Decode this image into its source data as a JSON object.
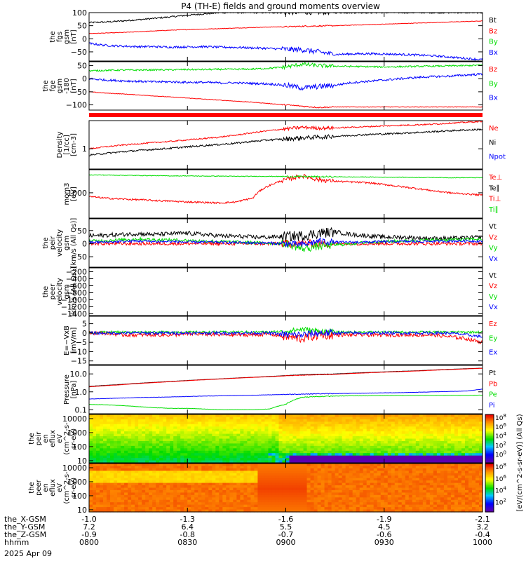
{
  "title": "P4 (TH-E) fields and ground moments overview",
  "time_axis": {
    "rows": [
      {
        "label": "the_X-GSM",
        "values": [
          "-1.0",
          "-1.3",
          "-1.6",
          "-1.9",
          "-2.1"
        ]
      },
      {
        "label": "the_Y-GSM",
        "values": [
          "7.2",
          "6.4",
          "5.5",
          "4.5",
          "3.2"
        ]
      },
      {
        "label": "the_Z-GSM",
        "values": [
          "-0.9",
          "-0.8",
          "-0.7",
          "-0.6",
          "-0.4"
        ]
      },
      {
        "label": "hhmm",
        "values": [
          "0800",
          "0830",
          "0900",
          "0930",
          "1000"
        ]
      }
    ],
    "date": "2025 Apr 09"
  },
  "colors": {
    "black": "#000000",
    "red": "#ff0000",
    "green": "#00dd00",
    "blue": "#0000ff"
  },
  "chart_data": [
    {
      "type": "line",
      "id": "fgs",
      "ylabel": [
        "the",
        "fgs",
        "gsm",
        "[nT]"
      ],
      "yticks": [
        "100",
        "50",
        "0",
        "−50"
      ],
      "ylim": [
        -85,
        100
      ],
      "series": [
        {
          "name": "Bt",
          "color": "#000000",
          "values": [
            62,
            64,
            68,
            73,
            78,
            84,
            90,
            95,
            100,
            100,
            100,
            100,
            100,
            100,
            100,
            100,
            100,
            100,
            100,
            100,
            100,
            100,
            100,
            100,
            100
          ],
          "noise": 3
        },
        {
          "name": "Bz",
          "color": "#ff0000",
          "values": [
            20,
            22,
            24,
            27,
            30,
            33,
            35,
            37,
            39,
            41,
            43,
            45,
            46,
            48,
            49,
            50,
            52,
            54,
            56,
            58,
            60,
            62,
            64,
            66,
            68
          ],
          "noise": 1
        },
        {
          "name": "By",
          "color": "#00dd00",
          "values": [],
          "noise": 0
        },
        {
          "name": "Bx",
          "color": "#0000ff",
          "values": [
            -18,
            -25,
            -28,
            -30,
            -30,
            -32,
            -31,
            -30,
            -32,
            -33,
            -35,
            -37,
            -40,
            -42,
            -50,
            -60,
            -58,
            -57,
            -58,
            -60,
            -62,
            -65,
            -70,
            -75,
            -80
          ],
          "noise": 4
        }
      ]
    },
    {
      "type": "line",
      "id": "fge",
      "ylabel": [
        "the",
        "fge",
        "gsm",
        "-180",
        "[nT]"
      ],
      "yticks": [
        "50",
        "0",
        "−50",
        "−100"
      ],
      "ylim": [
        -120,
        65
      ],
      "series": [
        {
          "name": "Bz",
          "color": "#ff0000",
          "values": [
            -50,
            -55,
            -58,
            -62,
            -66,
            -70,
            -74,
            -78,
            -82,
            -86,
            -90,
            -95,
            -100,
            -105,
            -110,
            -108,
            -108,
            -108,
            -108,
            -108,
            -108,
            -108,
            -108,
            -108,
            -108
          ],
          "noise": 1
        },
        {
          "name": "By",
          "color": "#00dd00",
          "values": [
            30,
            32,
            33,
            33,
            34,
            34,
            35,
            35,
            36,
            36,
            37,
            40,
            45,
            55,
            50,
            48,
            47,
            46,
            45,
            46,
            47,
            48,
            49,
            50,
            52
          ],
          "noise": 3
        },
        {
          "name": "Bx",
          "color": "#0000ff",
          "values": [
            0,
            -5,
            -8,
            -10,
            -12,
            -12,
            -14,
            -14,
            -16,
            -16,
            -18,
            -20,
            -25,
            -35,
            -30,
            -25,
            -15,
            -10,
            -5,
            0,
            5,
            8,
            10,
            14,
            18
          ],
          "noise": 4
        }
      ]
    },
    {
      "type": "line",
      "id": "density",
      "ylabel": [
        "Density",
        "[1/cc]",
        "[cm-3]"
      ],
      "yticks": [
        "1"
      ],
      "log": true,
      "ylim": [
        0.15,
        14
      ],
      "series": [
        {
          "name": "Ne",
          "color": "#ff0000",
          "values": [
            1.0,
            1.2,
            1.4,
            1.6,
            1.8,
            2.0,
            2.3,
            2.6,
            3.0,
            3.6,
            4.5,
            5.5,
            6.5,
            7.5,
            7.0,
            7.0,
            7.5,
            8.0,
            8.5,
            9.0,
            9.5,
            10.0,
            11.0,
            12.0,
            13.0
          ],
          "noise": 0.06
        },
        {
          "name": "Ni",
          "color": "#000000",
          "values": [
            0.55,
            0.65,
            0.75,
            0.85,
            0.95,
            1.05,
            1.2,
            1.35,
            1.5,
            1.7,
            2.0,
            2.3,
            2.5,
            2.8,
            3.0,
            3.2,
            3.5,
            3.8,
            4.0,
            4.3,
            4.6,
            5.0,
            5.4,
            5.8,
            6.2
          ],
          "noise": 0.08
        },
        {
          "name": "Npot",
          "color": "#0000ff",
          "values": [],
          "noise": 0
        }
      ]
    },
    {
      "type": "line",
      "id": "temp",
      "ylabel": [
        "mom3",
        "[eV]"
      ],
      "yticks": [
        "1000"
      ],
      "log": true,
      "ylim": [
        90,
        9000
      ],
      "series": [
        {
          "name": "Te⊥",
          "color": "#ff0000",
          "values": [],
          "noise": 0
        },
        {
          "name": "Te∥",
          "color": "#000000",
          "values": [],
          "noise": 0
        },
        {
          "name": "Ti⊥",
          "color": "#ff0000",
          "values": [
            700,
            600,
            550,
            520,
            480,
            450,
            420,
            400,
            380,
            420,
            600,
            2000,
            3500,
            5000,
            3500,
            3000,
            2800,
            2600,
            2200,
            1800,
            1500,
            1200,
            1000,
            900,
            800
          ],
          "noise": 0.08
        },
        {
          "name": "Ti∥",
          "color": "#00dd00",
          "values": [
            5500,
            5400,
            5300,
            5200,
            5100,
            5000,
            5000,
            4900,
            4900,
            4800,
            4800,
            4800,
            4700,
            4700,
            4600,
            4600,
            4500,
            4500,
            4400,
            4400,
            4300,
            4300,
            4200,
            4200,
            4200
          ],
          "noise": 0.03
        }
      ]
    },
    {
      "type": "line",
      "id": "peir_vel",
      "ylabel": [
        "the",
        "peir",
        "velocity",
        "gsm",
        "[km/s (All Qs)]"
      ],
      "yticks": [
        "50",
        "0",
        "−50"
      ],
      "ylim": [
        -90,
        95
      ],
      "series": [
        {
          "name": "Vt",
          "color": "#000000",
          "values": [
            30,
            32,
            35,
            38,
            35,
            38,
            40,
            35,
            30,
            28,
            25,
            25,
            28,
            30,
            40,
            45,
            35,
            30,
            25,
            25,
            22,
            20,
            20,
            22,
            25
          ],
          "noise": 8
        },
        {
          "name": "Vz",
          "color": "#ff0000",
          "values": [
            0,
            0,
            0,
            0,
            0,
            0,
            0,
            0,
            0,
            0,
            0,
            0,
            0,
            0,
            0,
            0,
            0,
            0,
            0,
            0,
            0,
            0,
            0,
            0,
            0
          ],
          "noise": 6
        },
        {
          "name": "Vy",
          "color": "#00dd00",
          "values": [
            10,
            12,
            15,
            18,
            15,
            14,
            12,
            10,
            8,
            6,
            4,
            2,
            0,
            -20,
            -10,
            -5,
            0,
            5,
            8,
            10,
            12,
            14,
            15,
            16,
            18
          ],
          "noise": 6
        },
        {
          "name": "Vx",
          "color": "#0000ff",
          "values": [
            5,
            6,
            8,
            10,
            8,
            8,
            6,
            6,
            5,
            4,
            3,
            2,
            0,
            -5,
            10,
            5,
            5,
            6,
            7,
            8,
            8,
            9,
            10,
            10,
            10
          ],
          "noise": 5
        }
      ]
    },
    {
      "type": "line",
      "id": "peer_vel",
      "ylabel": [
        "the",
        "peer",
        "velocity",
        "gsm",
        "[km/s (All Qs)]"
      ],
      "yticks": [
        "−200",
        "−400",
        "−600",
        "−800",
        "−1000",
        "−1200",
        "−1400"
      ],
      "ylim": [
        -1450,
        -90
      ],
      "series": [
        {
          "name": "Vt",
          "color": "#000000",
          "values": [],
          "noise": 0
        },
        {
          "name": "Vz",
          "color": "#ff0000",
          "values": [],
          "noise": 0
        },
        {
          "name": "Vy",
          "color": "#00dd00",
          "values": [],
          "noise": 0
        },
        {
          "name": "Vx",
          "color": "#0000ff",
          "values": [],
          "noise": 0
        }
      ]
    },
    {
      "type": "line",
      "id": "efield",
      "ylabel": [
        "E=−VxB",
        "[mV/m]"
      ],
      "yticks": [
        "5",
        "0",
        "−5",
        "−10",
        "−15"
      ],
      "ylim": [
        -17,
        9
      ],
      "series": [
        {
          "name": "Ez",
          "color": "#ff0000",
          "values": [
            0,
            0,
            -1,
            -1,
            -1,
            -1,
            -0.5,
            -0.5,
            -1,
            -1,
            -1,
            -0.5,
            -2,
            -3,
            -1,
            -1,
            -1,
            -1,
            -1,
            -1,
            -1,
            -1,
            -2,
            -3,
            -5
          ],
          "noise": 1
        },
        {
          "name": "Ey",
          "color": "#00dd00",
          "values": [
            0,
            0.5,
            0.5,
            0.5,
            0.5,
            0.5,
            0.5,
            0.5,
            0.5,
            0.5,
            0.5,
            0.5,
            1,
            2,
            1,
            0.5,
            0.5,
            0.5,
            0.5,
            0.5,
            0.5,
            0.5,
            0.5,
            0.5,
            0.5
          ],
          "noise": 0.6
        },
        {
          "name": "Ex",
          "color": "#0000ff",
          "values": [
            0,
            0,
            0,
            0,
            0,
            0,
            0,
            0,
            0,
            0,
            0,
            0,
            -1,
            -1,
            0,
            0,
            0,
            0,
            0,
            0,
            0,
            0,
            0,
            -1,
            -2
          ],
          "noise": 0.8
        }
      ]
    },
    {
      "type": "line",
      "id": "pressure",
      "ylabel": [
        "Pressure",
        "[nPa]"
      ],
      "yticks": [
        "10.0",
        "1.0",
        "0.1"
      ],
      "log": true,
      "ylim": [
        0.06,
        30
      ],
      "series": [
        {
          "name": "Pt",
          "color": "#000000",
          "values": [
            2.0,
            2.3,
            2.6,
            3.0,
            3.4,
            3.8,
            4.3,
            4.8,
            5.3,
            5.9,
            6.5,
            7.2,
            8.0,
            9.0,
            9.5,
            10.0,
            11.0,
            12.0,
            13.0,
            14.0,
            15.0,
            16.5,
            18.0,
            19.5,
            21.0
          ],
          "noise": 0.01
        },
        {
          "name": "Pb",
          "color": "#ff0000",
          "values": [
            1.9,
            2.2,
            2.5,
            2.9,
            3.3,
            3.7,
            4.2,
            4.7,
            5.2,
            5.8,
            6.4,
            7.0,
            7.8,
            8.5,
            9.0,
            9.5,
            10.5,
            11.5,
            12.5,
            13.5,
            14.5,
            16.0,
            17.5,
            19.0,
            20.5
          ],
          "noise": 0.01
        },
        {
          "name": "Pe",
          "color": "#00dd00",
          "values": [
            0.2,
            0.19,
            0.17,
            0.15,
            0.13,
            0.12,
            0.12,
            0.11,
            0.1,
            0.1,
            0.1,
            0.11,
            0.2,
            0.5,
            0.55,
            0.58,
            0.6,
            0.6,
            0.62,
            0.62,
            0.63,
            0.63,
            0.64,
            0.64,
            0.65
          ],
          "noise": 0.02
        },
        {
          "name": "Pi",
          "color": "#0000ff",
          "values": [
            0.4,
            0.42,
            0.45,
            0.48,
            0.5,
            0.52,
            0.55,
            0.58,
            0.6,
            0.62,
            0.65,
            0.68,
            0.72,
            0.75,
            0.78,
            0.8,
            0.82,
            0.85,
            0.88,
            0.9,
            0.95,
            1.0,
            1.05,
            1.1,
            1.4
          ],
          "noise": 0.02
        }
      ]
    },
    {
      "type": "heatmap",
      "id": "peir_en",
      "ylabel": [
        "the",
        "peir",
        "en",
        "eflux",
        "eV",
        "(cm^2-s-",
        "sr-eV)"
      ],
      "yticks": [
        "10000",
        "1000",
        "100",
        "10"
      ]
    },
    {
      "type": "heatmap",
      "id": "peer_en",
      "ylabel": [
        "the",
        "peer",
        "en",
        "eflux",
        "eV",
        "(cm^2-s-",
        "sr-eV)"
      ],
      "yticks": [
        "10000",
        "1000",
        "100",
        "10"
      ]
    }
  ],
  "colorbars": [
    {
      "ticks": [
        "10^8",
        "10^6",
        "10^4",
        "10^2",
        "10^0"
      ]
    },
    {
      "ticks": [
        "10^8",
        "10^6",
        "10^4",
        "10^2"
      ]
    }
  ],
  "colorbar_label": "[eV/(cm^2-s-sr-eV)] (All Qs)"
}
